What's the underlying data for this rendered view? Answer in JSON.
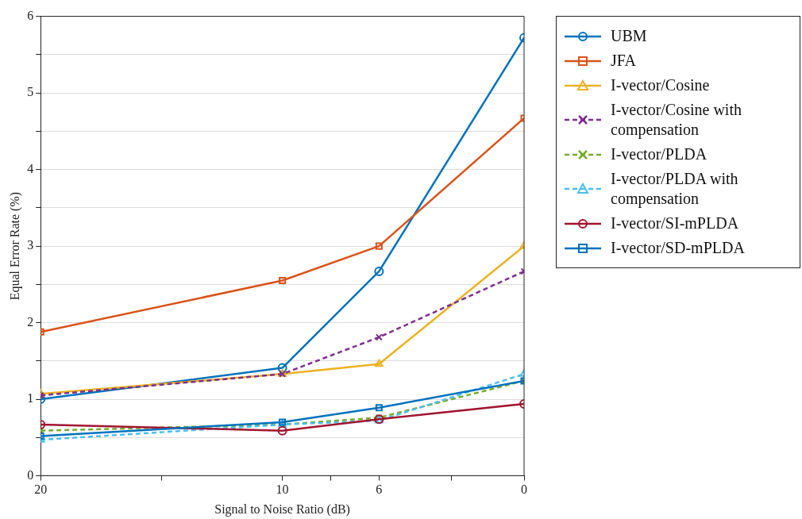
{
  "chart_data": {
    "type": "line",
    "xlabel": "Signal to Noise Ratio (dB)",
    "ylabel": "Equal Error Rate (%)",
    "x": [
      20,
      10,
      6,
      0
    ],
    "xlim": [
      20,
      0
    ],
    "xticks": [
      20,
      {
        "value": 15,
        "label": null
      },
      10,
      {
        "value": 8,
        "label": null
      },
      6,
      {
        "value": 3,
        "label": null
      },
      0
    ],
    "ylim": [
      0,
      6
    ],
    "yticks": [
      0,
      {
        "value": 0.5,
        "label": null
      },
      1,
      {
        "value": 1.5,
        "label": null
      },
      2,
      {
        "value": 2.5,
        "label": null
      },
      3,
      {
        "value": 3.5,
        "label": null
      },
      4,
      {
        "value": 4.5,
        "label": null
      },
      5,
      {
        "value": 5.5,
        "label": null
      },
      6
    ],
    "grid": "y",
    "legend": "right",
    "series": [
      {
        "name": "UBM",
        "color": "#0072bd",
        "marker": "circle",
        "line_style": "solid",
        "values": [
          1.0,
          1.41,
          2.67,
          5.72
        ]
      },
      {
        "name": "JFA",
        "color": "#d95319",
        "marker": "square",
        "line_style": "solid",
        "values": [
          1.88,
          2.55,
          3.0,
          4.67
        ]
      },
      {
        "name": "I-vector/Cosine",
        "color": "#edb120",
        "marker": "triangle",
        "line_style": "solid",
        "values": [
          1.07,
          1.33,
          1.46,
          3.0
        ]
      },
      {
        "name": "I-vector/Cosine with compensation",
        "color": "#7e2f8e",
        "marker": "cross",
        "line_style": "dashed",
        "values": [
          1.05,
          1.33,
          1.81,
          2.67
        ]
      },
      {
        "name": "I-vector/PLDA",
        "color": "#77ac30",
        "marker": "cross",
        "line_style": "dashed",
        "values": [
          0.59,
          0.67,
          0.76,
          1.24
        ]
      },
      {
        "name": "I-vector/PLDA with compensation",
        "color": "#4dbeee",
        "marker": "triangle",
        "line_style": "dashed",
        "values": [
          0.47,
          0.67,
          0.72,
          1.33
        ]
      },
      {
        "name": "I-vector/SI-mPLDA",
        "color": "#a2142f",
        "marker": "circle",
        "line_style": "solid",
        "values": [
          0.67,
          0.59,
          0.74,
          0.94
        ]
      },
      {
        "name": "I-vector/SD-mPLDA",
        "color": "#0072bd",
        "marker": "square",
        "line_style": "solid",
        "values": [
          0.52,
          0.7,
          0.89,
          1.24
        ]
      }
    ]
  }
}
